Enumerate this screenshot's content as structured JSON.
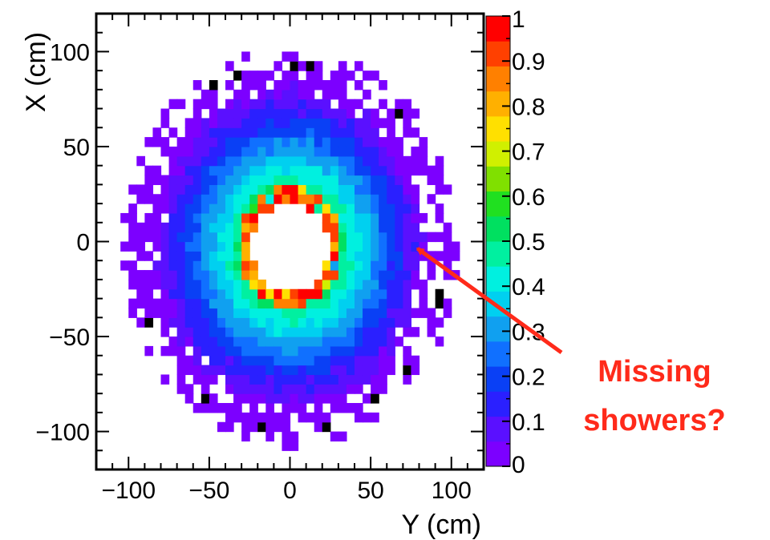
{
  "chart_data": {
    "type": "heatmap",
    "title": "",
    "xlabel": "Y (cm)",
    "ylabel": "X (cm)",
    "xlim": [
      -120,
      120
    ],
    "ylim": [
      -120,
      120
    ],
    "x_ticks": [
      {
        "value": -100,
        "label": "−100"
      },
      {
        "value": -50,
        "label": "−50"
      },
      {
        "value": 0,
        "label": "0"
      },
      {
        "value": 50,
        "label": "50"
      },
      {
        "value": 100,
        "label": "100"
      }
    ],
    "y_ticks": [
      {
        "value": 100,
        "label": "100"
      },
      {
        "value": 50,
        "label": "50"
      },
      {
        "value": 0,
        "label": "0"
      },
      {
        "value": -50,
        "label": "−50"
      },
      {
        "value": -100,
        "label": "−100"
      }
    ],
    "zlim": [
      0,
      1
    ],
    "colorbar_ticks": [
      {
        "value": 1,
        "label": "1"
      },
      {
        "value": 0.9,
        "label": "0.9"
      },
      {
        "value": 0.8,
        "label": "0.8"
      },
      {
        "value": 0.7,
        "label": "0.7"
      },
      {
        "value": 0.6,
        "label": "0.6"
      },
      {
        "value": 0.5,
        "label": "0.5"
      },
      {
        "value": 0.4,
        "label": "0.4"
      },
      {
        "value": 0.3,
        "label": "0.3"
      },
      {
        "value": 0.2,
        "label": "0.2"
      },
      {
        "value": 0.1,
        "label": "0.1"
      },
      {
        "value": 0,
        "label": "0"
      }
    ],
    "palette": [
      "#7c00ff",
      "#5a10ff",
      "#2a20ff",
      "#0a40f5",
      "#1070ff",
      "#10a0f0",
      "#00d0f0",
      "#00f0e0",
      "#00f0a0",
      "#00e060",
      "#20e020",
      "#80e000",
      "#d0f000",
      "#ffe000",
      "#ffb000",
      "#ff8000",
      "#ff4000",
      "#ff0000"
    ],
    "distribution": {
      "description_units": "cm",
      "center": [
        0,
        -3
      ],
      "inner_hole_radius": 24,
      "peak_radius": 28,
      "outer_radius": 95,
      "bin_size_cm": 5,
      "peak_value": 1.0
    },
    "annotation": {
      "lines": [
        "Missing",
        "showers?"
      ],
      "arrow_target": {
        "x": 75,
        "y": -2
      }
    }
  }
}
